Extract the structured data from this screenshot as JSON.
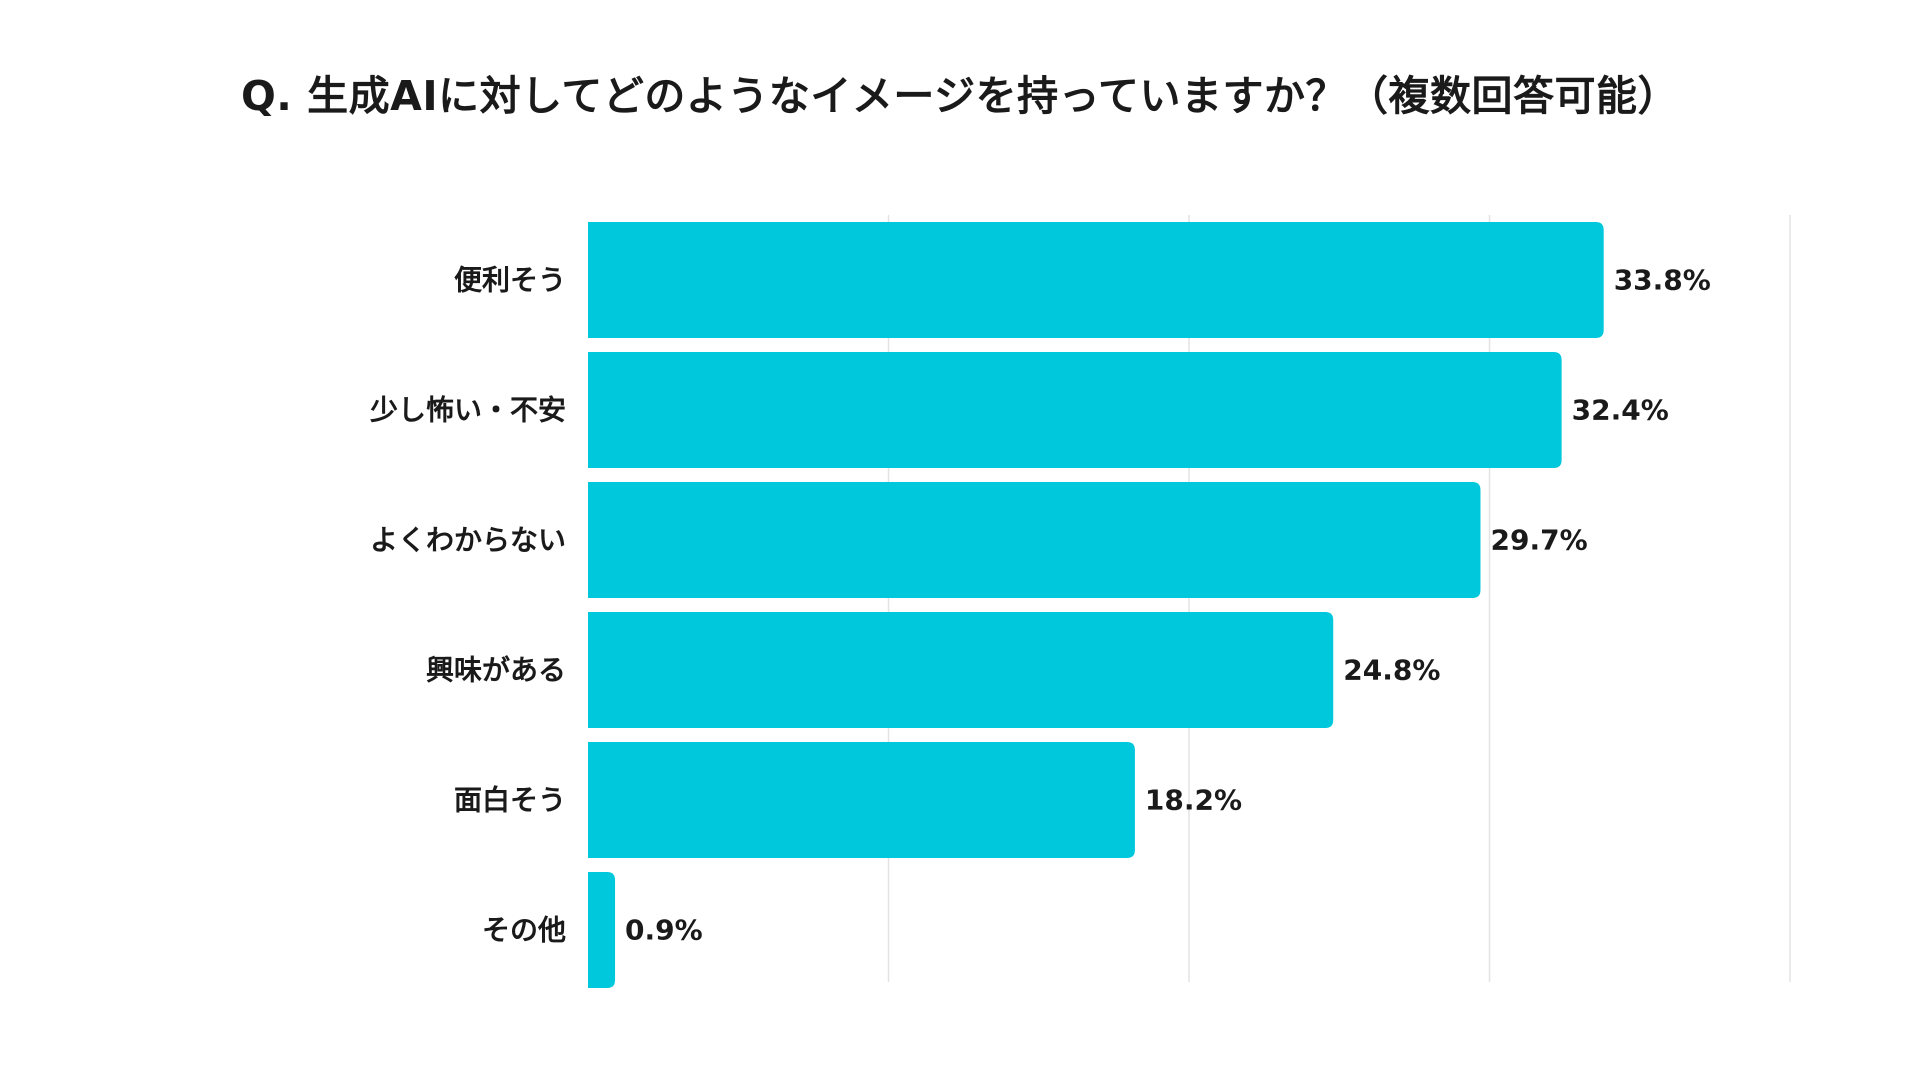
{
  "chart_data": {
    "type": "bar",
    "orientation": "horizontal",
    "title": "Q. 生成AIに対してどのようなイメージを持っていますか？（複数回答可能）",
    "categories": [
      "便利そう",
      "少し怖い・不安",
      "よくわからない",
      "興味がある",
      "面白そう",
      "その他"
    ],
    "values": [
      33.8,
      32.4,
      29.7,
      24.8,
      18.2,
      0.9
    ],
    "value_labels": [
      "33.8%",
      "32.4%",
      "29.7%",
      "24.8%",
      "18.2%",
      "0.9%"
    ],
    "xlabel": "",
    "ylabel": "",
    "xlim": [
      0,
      40
    ],
    "gridlines_at": [
      10,
      20,
      30,
      40
    ],
    "grid": true,
    "legend": "none",
    "colors": {
      "bar": "#00C8DC",
      "grid": "#E3E3E3",
      "text": "#1a1a1a"
    }
  }
}
